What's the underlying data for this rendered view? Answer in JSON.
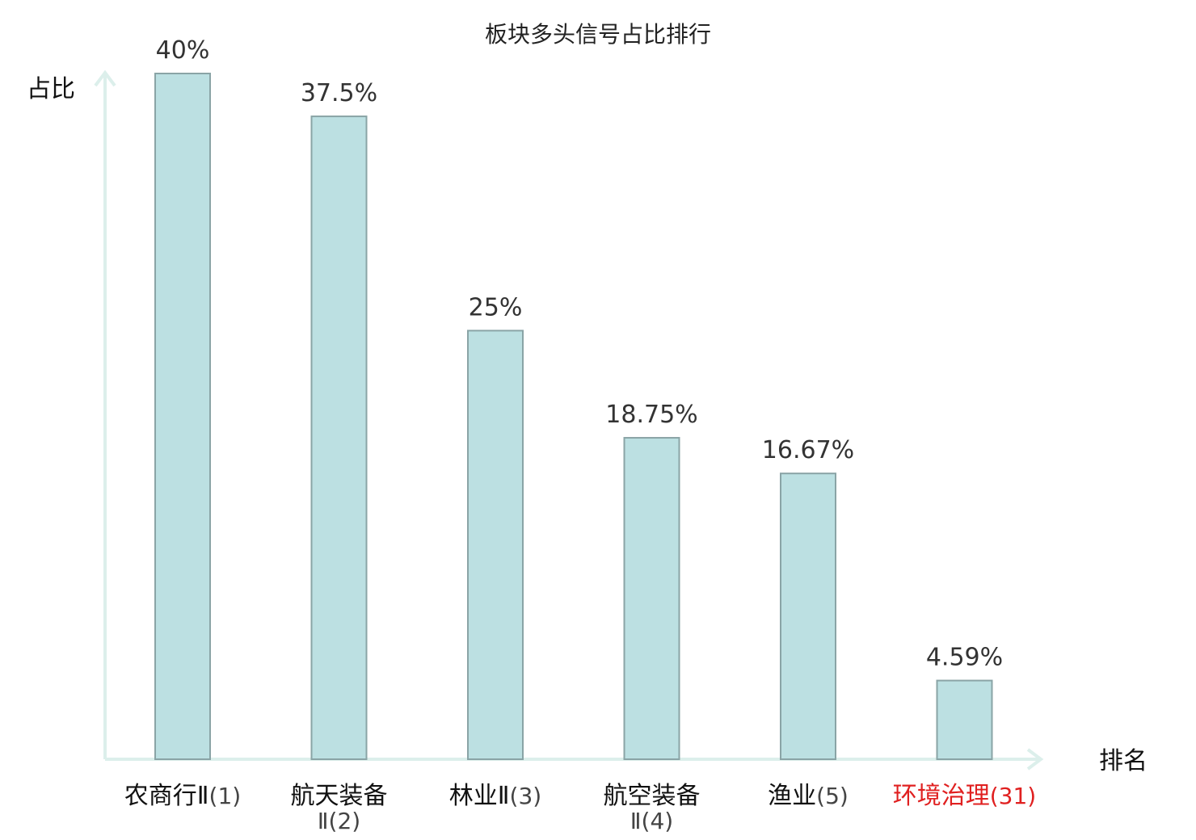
{
  "chart_data": {
    "type": "bar",
    "title": "板块多头信号占比排行",
    "ylabel": "占比",
    "xlabel": "排名",
    "categories": [
      {
        "lines": [
          "农商行Ⅱ",
          "(1)"
        ],
        "wrap": false,
        "highlight": false
      },
      {
        "lines": [
          "航天装备",
          "Ⅱ(2)"
        ],
        "wrap": true,
        "highlight": false
      },
      {
        "lines": [
          "林业Ⅱ",
          "(3)"
        ],
        "wrap": false,
        "highlight": false
      },
      {
        "lines": [
          "航空装备",
          "Ⅱ(4)"
        ],
        "wrap": true,
        "highlight": false
      },
      {
        "lines": [
          "渔业",
          "(5)"
        ],
        "wrap": false,
        "highlight": false
      },
      {
        "lines": [
          "环境治理",
          "(31)"
        ],
        "wrap": false,
        "highlight": true
      }
    ],
    "values": [
      40,
      37.5,
      25,
      18.75,
      16.67,
      4.59
    ],
    "value_labels": [
      "40%",
      "37.5%",
      "25%",
      "18.75%",
      "16.67%",
      "4.59%"
    ],
    "ylim": [
      0,
      40
    ],
    "grid": false,
    "colors": {
      "bar_fill": "#bce0e2",
      "bar_stroke": "#8aa4a6",
      "axis": "#dcefeb",
      "highlight": "#e02020"
    }
  }
}
